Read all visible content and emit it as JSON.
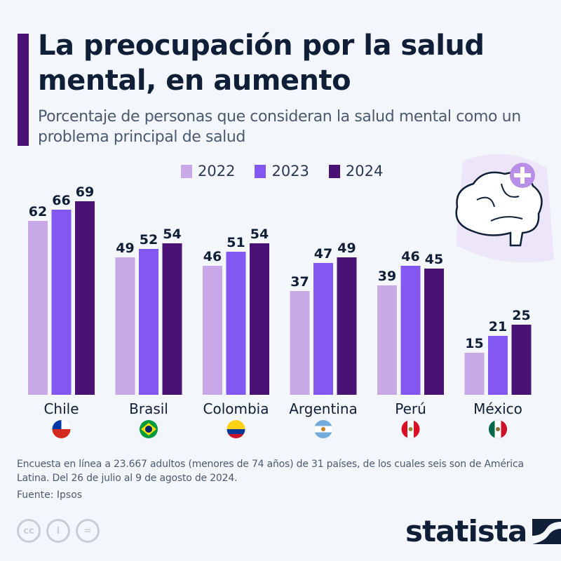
{
  "header": {
    "title": "La preocupación por la salud mental, en aumento",
    "subtitle": "Porcentaje de personas que consideran la salud mental como un problema principal de salud"
  },
  "chart_data": {
    "type": "bar",
    "title": "La preocupación por la salud mental, en aumento",
    "subtitle": "Porcentaje de personas que consideran la salud mental como un problema principal de salud",
    "categories": [
      "Chile",
      "Brasil",
      "Colombia",
      "Argentina",
      "Perú",
      "México"
    ],
    "series": [
      {
        "name": "2022",
        "color": "#c9a8e8",
        "values": [
          62,
          49,
          46,
          37,
          39,
          15
        ]
      },
      {
        "name": "2023",
        "color": "#8358f0",
        "values": [
          66,
          52,
          51,
          47,
          46,
          21
        ]
      },
      {
        "name": "2024",
        "color": "#4a1275",
        "values": [
          69,
          54,
          54,
          49,
          45,
          25
        ]
      }
    ],
    "ylim": [
      0,
      100
    ],
    "grid": false,
    "legend": "top-center",
    "flags": [
      "chile-flag",
      "brazil-flag",
      "colombia-flag",
      "argentina-flag",
      "peru-flag",
      "mexico-flag"
    ]
  },
  "footer": {
    "note": "Encuesta en línea a 23.667 adultos (menores de 74 años) de 31 países, de los cuales seis son de América Latina. Del 26 de julio al 9 de agosto de 2024.",
    "source": "Fuente: Ipsos",
    "cc_icons": [
      "cc",
      "by",
      "nd"
    ],
    "logo": "statista"
  },
  "icons": {
    "illustration": "brain-plus-icon"
  }
}
